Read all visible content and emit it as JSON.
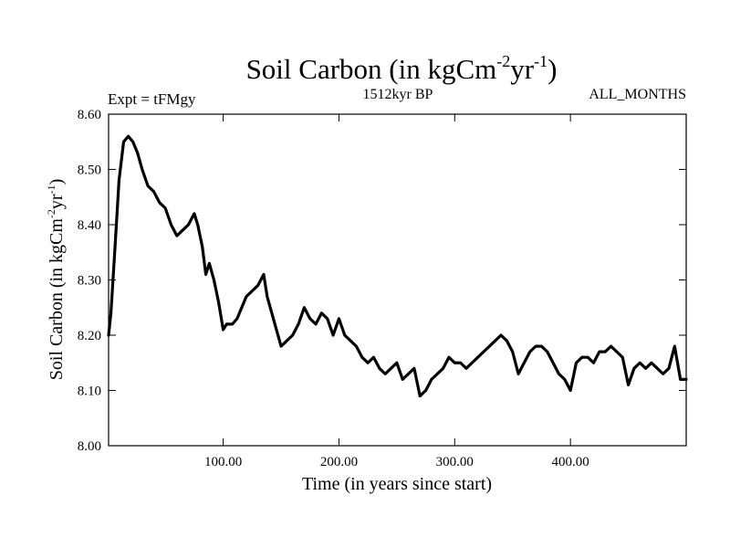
{
  "chart_data": {
    "type": "line",
    "title": "Soil Carbon (in kgCm-2yr-1)",
    "title_parts": {
      "base": "Soil Carbon (in kgCm",
      "sup1": "-2",
      "mid": "yr",
      "sup2": "-1",
      "end": ")"
    },
    "subtitle_left": "Expt = tFMgy",
    "subtitle_center": "1512kyr BP",
    "subtitle_right": "ALL_MONTHS",
    "xlabel": "Time (in years since start)",
    "ylabel": "Soil Carbon (in kgCm-2yr-1)",
    "ylabel_parts": {
      "base": "Soil Carbon (in kgCm",
      "sup1": "-2",
      "mid": "yr",
      "sup2": "-1",
      "end": ")"
    },
    "xlim": [
      1,
      500
    ],
    "ylim": [
      8.0,
      8.6
    ],
    "xticks": [
      100,
      200,
      300,
      400
    ],
    "xtick_labels": [
      "100.00",
      "200.00",
      "300.00",
      "400.00"
    ],
    "yticks": [
      8.0,
      8.1,
      8.2,
      8.3,
      8.4,
      8.5,
      8.6
    ],
    "ytick_labels": [
      "8.00",
      "8.10",
      "8.20",
      "8.30",
      "8.40",
      "8.50",
      "8.60"
    ],
    "grid": false,
    "line_color": "#000000",
    "series": [
      {
        "name": "Soil Carbon",
        "x": [
          1,
          3,
          6,
          10,
          14,
          18,
          22,
          26,
          30,
          35,
          40,
          45,
          50,
          55,
          60,
          65,
          70,
          75,
          78,
          82,
          85,
          88,
          92,
          96,
          100,
          103,
          108,
          112,
          116,
          120,
          125,
          130,
          135,
          138,
          142,
          146,
          150,
          155,
          160,
          165,
          170,
          175,
          180,
          185,
          190,
          195,
          200,
          205,
          210,
          215,
          220,
          225,
          230,
          235,
          240,
          245,
          250,
          255,
          260,
          265,
          270,
          275,
          280,
          285,
          290,
          295,
          300,
          305,
          310,
          315,
          320,
          325,
          330,
          335,
          340,
          345,
          350,
          355,
          360,
          365,
          370,
          375,
          380,
          385,
          390,
          395,
          400,
          405,
          410,
          415,
          420,
          425,
          430,
          435,
          440,
          445,
          450,
          455,
          460,
          465,
          470,
          475,
          480,
          485,
          490,
          495,
          500
        ],
        "values": [
          8.2,
          8.24,
          8.34,
          8.48,
          8.55,
          8.56,
          8.55,
          8.53,
          8.5,
          8.47,
          8.46,
          8.44,
          8.43,
          8.4,
          8.38,
          8.39,
          8.4,
          8.42,
          8.4,
          8.36,
          8.31,
          8.33,
          8.3,
          8.26,
          8.21,
          8.22,
          8.22,
          8.23,
          8.25,
          8.27,
          8.28,
          8.29,
          8.31,
          8.27,
          8.24,
          8.21,
          8.18,
          8.19,
          8.2,
          8.22,
          8.25,
          8.23,
          8.22,
          8.24,
          8.23,
          8.2,
          8.23,
          8.2,
          8.19,
          8.18,
          8.16,
          8.15,
          8.16,
          8.14,
          8.13,
          8.14,
          8.15,
          8.12,
          8.13,
          8.14,
          8.09,
          8.1,
          8.12,
          8.13,
          8.14,
          8.16,
          8.15,
          8.15,
          8.14,
          8.15,
          8.16,
          8.17,
          8.18,
          8.19,
          8.2,
          8.19,
          8.17,
          8.13,
          8.15,
          8.17,
          8.18,
          8.18,
          8.17,
          8.15,
          8.13,
          8.12,
          8.1,
          8.15,
          8.16,
          8.16,
          8.15,
          8.17,
          8.17,
          8.18,
          8.17,
          8.16,
          8.11,
          8.14,
          8.15,
          8.14,
          8.15,
          8.14,
          8.13,
          8.14,
          8.18,
          8.12,
          8.12
        ]
      }
    ]
  }
}
